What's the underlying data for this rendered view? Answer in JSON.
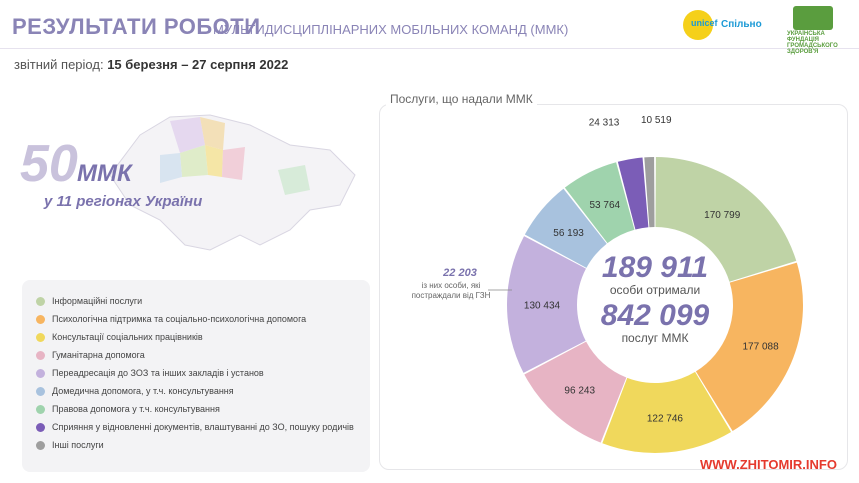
{
  "header": {
    "title": "РЕЗУЛЬТАТИ РОБОТИ",
    "subtitle": "МУЛЬТИДИСЦИПЛІНАРНИХ МОБІЛЬНИХ КОМАНД (ММК)",
    "unicef_label": "unicef",
    "spilno_label": "Спільно",
    "fund_label": "УКРАЇНСЬКА ФУНДАЦІЯ ГРОМАДСЬКОГО ЗДОРОВ'Я"
  },
  "period": {
    "label": "звітний період:",
    "value": "15 березня – 27 серпня 2022"
  },
  "summary": {
    "count": "50",
    "unit": "ММК",
    "regions": "у 11 регіонах України"
  },
  "note": {
    "value": "22 203",
    "text": "із них особи, які постраждали від ГЗН"
  },
  "footer": {
    "site": "WWW.ZHITOMIR.INFO"
  },
  "chart_data": {
    "type": "pie",
    "title": "Послуги, що надали ММК",
    "center": {
      "people_value": "189 911",
      "people_label": "особи отримали",
      "services_value": "842 099",
      "services_label": "послуг ММК"
    },
    "categories": [
      "Інформаційні послуги",
      "Психологічна підтримка та соціально-психологічна допомога",
      "Консультації соціальних працівників",
      "Гуманітарна допомога",
      "Переадресація до ЗОЗ та інших закладів і установ",
      "Домедична допомога, у т.ч. консультування",
      "Правова допомога у т.ч. консультування",
      "Сприяння у відновленні документів, влаштуванні до ЗО, пошуку родичів",
      "Інші послуги"
    ],
    "values": [
      170799,
      177088,
      122746,
      96243,
      130434,
      56193,
      53764,
      24313,
      10519
    ],
    "labels": [
      "170 799",
      "177 088",
      "122 746",
      "96 243",
      "130 434",
      "56 193",
      "53 764",
      "24 313",
      "10 519"
    ],
    "colors": [
      "#bfd3a6",
      "#f7b560",
      "#f0d85c",
      "#e7b4c4",
      "#c3b1dd",
      "#a8c2de",
      "#9fd3ad",
      "#7b5db7",
      "#9e9e9e"
    ]
  }
}
